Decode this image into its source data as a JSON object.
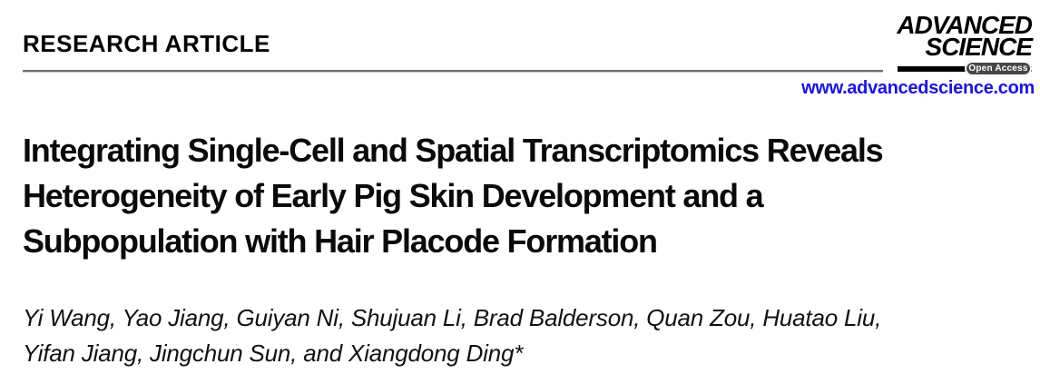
{
  "header": {
    "section_label": "RESEARCH ARTICLE",
    "journal": {
      "name_line1": "ADVANCED",
      "name_line2": "SCIENCE",
      "open_access_label": "Open Access",
      "website": "www.advancedscience.com"
    }
  },
  "article": {
    "title_lines": [
      "Integrating Single-Cell and Spatial Transcriptomics Reveals",
      "Heterogeneity of Early Pig Skin Development and a",
      "Subpopulation with Hair Placode Formation"
    ],
    "author_lines": [
      "Yi Wang, Yao Jiang, Guiyan Ni, Shujuan Li, Brad Balderson, Quan Zou, Huatao Liu,",
      "Yifan Jiang, Jingchun Sun, and Xiangdong Ding*"
    ]
  },
  "colors": {
    "link_blue": "#1512f5",
    "rule_gray": "#6f6f6f",
    "badge_gray": "#474747"
  }
}
